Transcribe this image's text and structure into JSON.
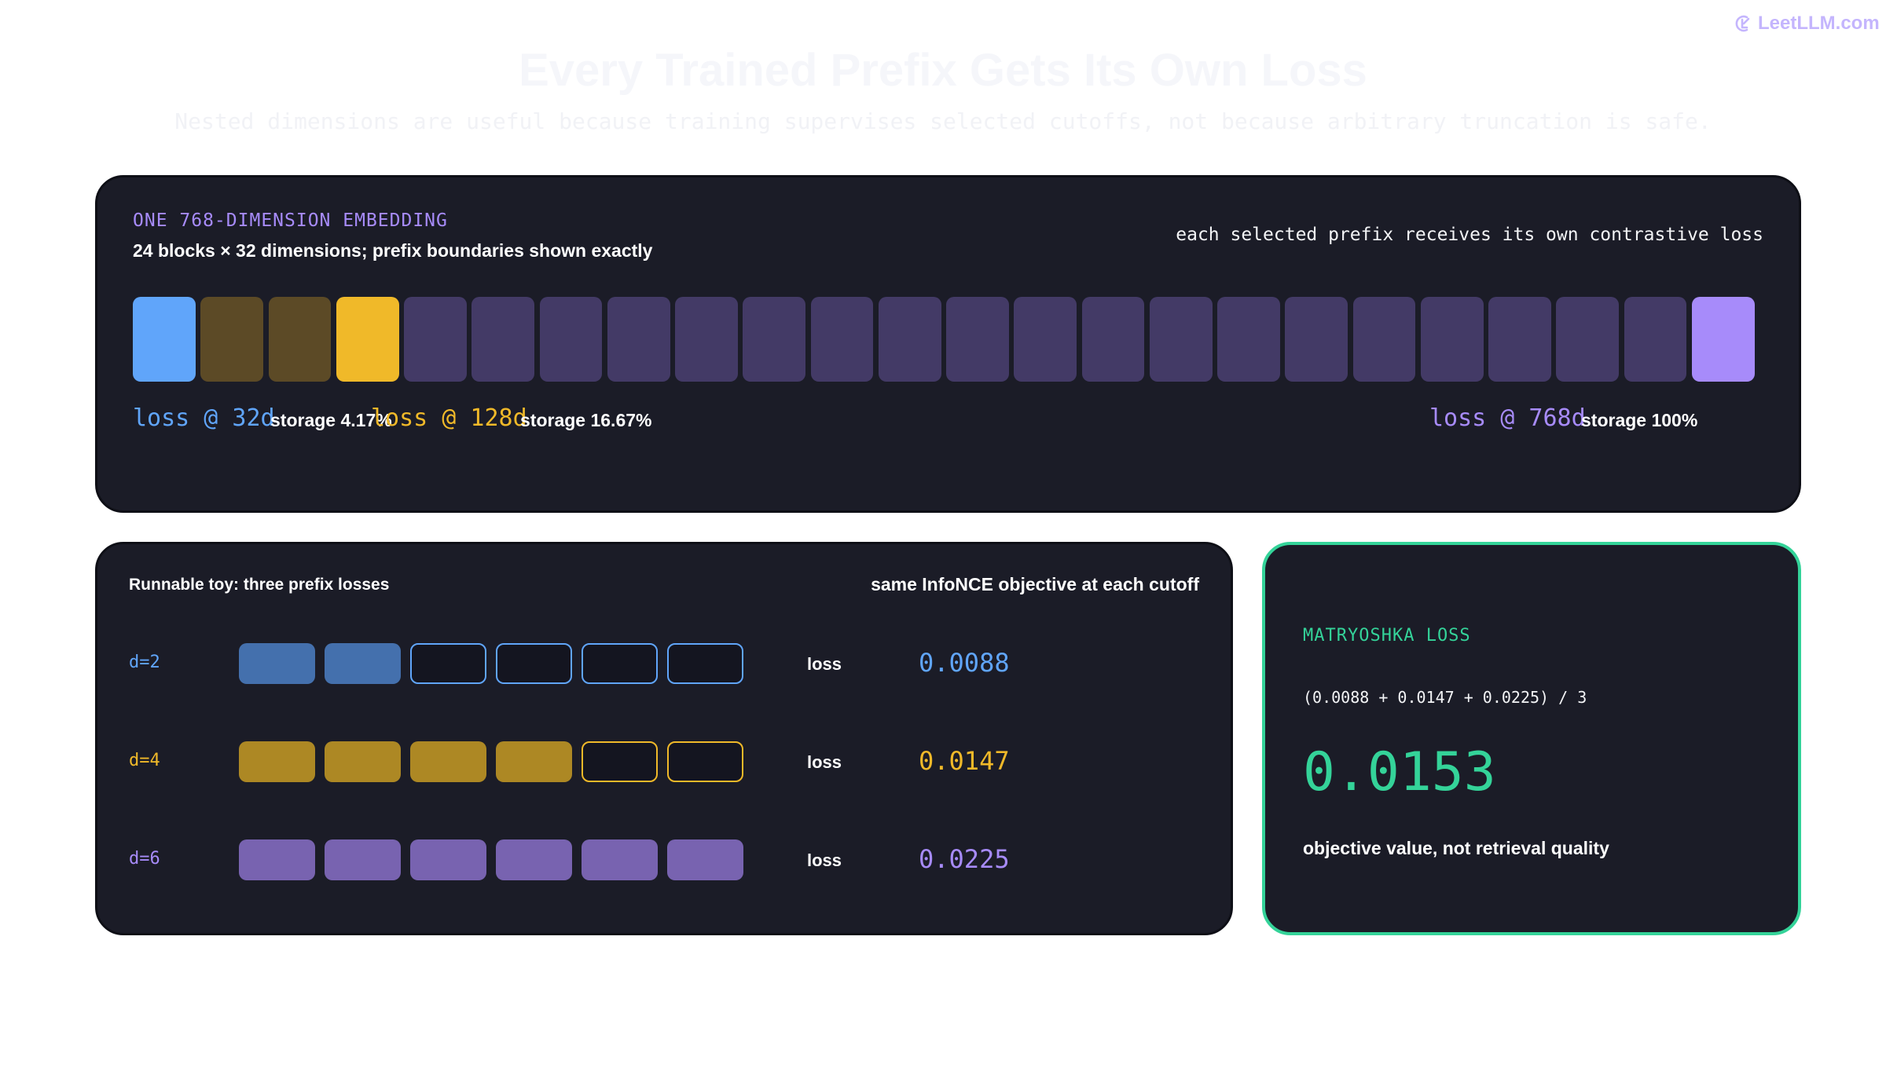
{
  "brand": {
    "name": "LeetLLM.com",
    "icon": "leetllm-logo-icon"
  },
  "title": "Every Trained Prefix Gets Its Own Loss",
  "subtitle": "Nested dimensions are useful because training supervises selected cutoffs, not because arbitrary truncation is safe.",
  "embedding": {
    "kicker": "ONE 768-DIMENSION EMBEDDING",
    "subtitle": "24 blocks × 32 dimensions; prefix boundaries shown exactly",
    "note": "each selected prefix receives its own contrastive loss",
    "block_count": 24,
    "block_colors": [
      "#60a5fa",
      "#5c4a26",
      "#5c4a26",
      "#f0b929",
      "#433a66",
      "#433a66",
      "#433a66",
      "#433a66",
      "#433a66",
      "#433a66",
      "#433a66",
      "#433a66",
      "#433a66",
      "#433a66",
      "#433a66",
      "#433a66",
      "#433a66",
      "#433a66",
      "#433a66",
      "#433a66",
      "#433a66",
      "#433a66",
      "#433a66",
      "#a78bfa"
    ],
    "prefixes": [
      {
        "loss": "loss @ 32d",
        "storage": "storage 4.17%",
        "color": "#60a5fa",
        "end_block": 1
      },
      {
        "loss": "loss @ 128d",
        "storage": "storage 16.67%",
        "color": "#f0b929",
        "end_block": 4
      },
      {
        "loss": "loss @ 768d",
        "storage": "storage 100%",
        "color": "#a78bfa",
        "end_block": 24
      }
    ]
  },
  "toy": {
    "title": "Runnable toy: three prefix losses",
    "note": "same InfoNCE objective at each cutoff",
    "total_dims": 6,
    "loss_word": "loss",
    "rows": [
      {
        "label": "d=2",
        "dims": 2,
        "loss": "0.0088",
        "fill": "#4470ad",
        "outline": "#60a5fa"
      },
      {
        "label": "d=4",
        "dims": 4,
        "loss": "0.0147",
        "fill": "#ad8824",
        "outline": "#f0b929"
      },
      {
        "label": "d=6",
        "dims": 6,
        "loss": "0.0225",
        "fill": "#7863b0",
        "outline": "#a78bfa"
      }
    ]
  },
  "result": {
    "kicker": "MATRYOSHKA LOSS",
    "formula": "(0.0088 + 0.0147 + 0.0225) / 3",
    "value": "0.0153",
    "caption": "objective value, not retrieval quality"
  }
}
